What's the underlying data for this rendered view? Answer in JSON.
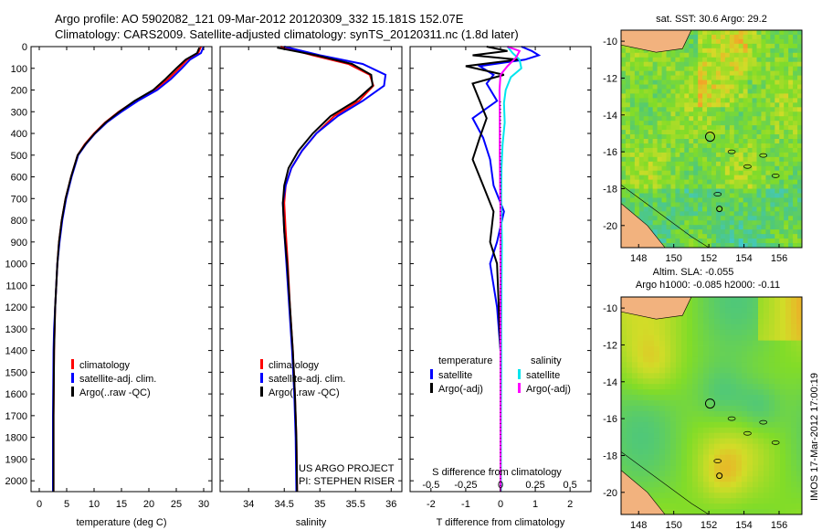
{
  "title": {
    "line1": "Argo profile: AO 5902082_121 09-Mar-2012 20120309_332 15.181S 152.07E",
    "line2": "Climatology: CARS2009. Satellite-adjusted climatology: synTS_20120311.nc (1.8d later)"
  },
  "credit": {
    "line1": "US ARGO PROJECT",
    "line2": "PI: STEPHEN RISER",
    "stamp": "IMOS 17-Mar-2012 17:00:19"
  },
  "colors": {
    "climatology": "#ff0000",
    "satellite": "#0000ff",
    "argo": "#000000",
    "satellite_s": "#00e5ee",
    "argo_s": "#ff00ff"
  },
  "chart_data": [
    {
      "type": "line",
      "name": "temperature-profile",
      "xlabel": "temperature (deg C)",
      "xlim": [
        -1.5,
        31.5
      ],
      "xticks": [
        "0",
        "5",
        "10",
        "15",
        "20",
        "25",
        "30"
      ],
      "xtick_values": [
        0,
        5,
        10,
        15,
        20,
        25,
        30
      ],
      "ylim": [
        0,
        2050
      ],
      "yticks": [
        "0",
        "100",
        "200",
        "300",
        "400",
        "500",
        "600",
        "700",
        "800",
        "900",
        "1000",
        "1100",
        "1200",
        "1300",
        "1400",
        "1500",
        "1600",
        "1700",
        "1800",
        "1900",
        "2000"
      ],
      "ytick_values": [
        0,
        100,
        200,
        300,
        400,
        500,
        600,
        700,
        800,
        900,
        1000,
        1100,
        1200,
        1300,
        1400,
        1500,
        1600,
        1700,
        1800,
        1900,
        2000
      ],
      "legend": [
        "climatology",
        "satellite-adj. clim.",
        "Argo(..raw -QC)"
      ],
      "series": [
        {
          "name": "climatology",
          "color": "#ff0000",
          "x": [
            29.5,
            29.0,
            27.0,
            25.5,
            23.5,
            21.0,
            17.5,
            14.5,
            12.0,
            10.0,
            8.3,
            7.0,
            5.8,
            4.8,
            4.1,
            3.6,
            3.3,
            3.1,
            2.9,
            2.8,
            2.7,
            2.6,
            2.6
          ],
          "y": [
            0,
            30,
            60,
            100,
            150,
            200,
            250,
            300,
            350,
            400,
            450,
            500,
            600,
            700,
            800,
            900,
            1000,
            1100,
            1200,
            1300,
            1400,
            1700,
            2050
          ]
        },
        {
          "name": "satellite-adj. clim.",
          "color": "#0000ff",
          "x": [
            30.0,
            29.5,
            27.5,
            26.0,
            24.0,
            21.5,
            18.0,
            15.0,
            12.3,
            10.2,
            8.5,
            7.1,
            5.9,
            4.9,
            4.2,
            3.7,
            3.3,
            3.1,
            2.9,
            2.7,
            2.6,
            2.5,
            2.5
          ],
          "y": [
            0,
            30,
            60,
            100,
            150,
            200,
            250,
            300,
            350,
            400,
            450,
            500,
            600,
            700,
            800,
            900,
            1000,
            1100,
            1200,
            1300,
            1400,
            1700,
            2050
          ]
        },
        {
          "name": "Argo(..raw -QC)",
          "color": "#000000",
          "x": [
            29.2,
            28.8,
            26.7,
            25.0,
            23.0,
            20.8,
            17.4,
            14.6,
            12.1,
            10.1,
            8.4,
            7.0,
            5.8,
            4.8,
            4.1,
            3.6,
            3.3,
            3.1,
            2.9,
            2.8,
            2.7,
            2.6,
            2.6
          ],
          "y": [
            5,
            30,
            60,
            100,
            150,
            200,
            250,
            300,
            350,
            400,
            450,
            500,
            600,
            700,
            800,
            900,
            1000,
            1100,
            1200,
            1300,
            1400,
            1700,
            2050
          ]
        }
      ]
    },
    {
      "type": "line",
      "name": "salinity-profile",
      "xlabel": "salinity",
      "xlim": [
        33.6,
        36.15
      ],
      "xticks": [
        "34",
        "34.5",
        "35",
        "35.5",
        "36"
      ],
      "xtick_values": [
        34,
        34.5,
        35,
        35.5,
        36
      ],
      "ylim": [
        0,
        2050
      ],
      "legend": [
        "climatology",
        "satellite-adj. clim.",
        "Argo(..raw -QC)"
      ],
      "series": [
        {
          "name": "climatology",
          "color": "#ff0000",
          "x": [
            34.45,
            34.9,
            35.4,
            35.7,
            35.75,
            35.55,
            35.2,
            34.95,
            34.75,
            34.6,
            34.52,
            34.5,
            34.52,
            34.55,
            34.58,
            34.62,
            34.65,
            34.67,
            34.68
          ],
          "y": [
            0,
            40,
            80,
            130,
            180,
            250,
            320,
            400,
            480,
            560,
            640,
            720,
            850,
            1000,
            1200,
            1400,
            1600,
            1800,
            2050
          ]
        },
        {
          "name": "satellite-adj. clim.",
          "color": "#0000ff",
          "x": [
            34.5,
            35.0,
            35.6,
            35.92,
            35.9,
            35.6,
            35.25,
            34.95,
            34.75,
            34.6,
            34.52,
            34.48,
            34.5,
            34.53,
            34.57,
            34.61,
            34.64,
            34.66,
            34.67
          ],
          "y": [
            0,
            40,
            80,
            130,
            180,
            250,
            320,
            400,
            480,
            560,
            640,
            720,
            850,
            1000,
            1200,
            1400,
            1600,
            1800,
            2050
          ]
        },
        {
          "name": "Argo(..raw -QC)",
          "color": "#000000",
          "x": [
            34.4,
            34.95,
            35.45,
            35.72,
            35.74,
            35.5,
            35.15,
            34.9,
            34.7,
            34.56,
            34.5,
            34.48,
            34.5,
            34.54,
            34.58,
            34.62,
            34.65,
            34.67,
            34.68
          ],
          "y": [
            5,
            40,
            80,
            130,
            180,
            250,
            320,
            400,
            480,
            560,
            640,
            720,
            850,
            1000,
            1200,
            1400,
            1600,
            1800,
            2050
          ]
        }
      ]
    },
    {
      "type": "line",
      "name": "difference-profile",
      "xlabel": "T difference from climatology",
      "xlabel_top": "S difference from climatology",
      "xlim": [
        -2.6,
        2.6
      ],
      "xticks": [
        "-2",
        "-1",
        "0",
        "1",
        "2"
      ],
      "xtick_values": [
        -2,
        -1,
        0,
        1,
        2
      ],
      "xticks_top": [
        "-0.5",
        "-0.25",
        "0",
        "0.25",
        "0.5"
      ],
      "xticks_top_values": [
        -0.5,
        -0.25,
        0,
        0.25,
        0.5
      ],
      "ylim": [
        0,
        2050
      ],
      "legend_header": [
        "temperature",
        "salinity"
      ],
      "legend": [
        "satellite",
        "Argo(-adj)",
        "satellite",
        "Argo(-adj)"
      ],
      "series": [
        {
          "name": "temperature satellite",
          "color": "#0000ff",
          "x": [
            0.6,
            0.9,
            1.1,
            0.7,
            -0.6,
            -0.2,
            -0.4,
            -0.1,
            -0.8,
            -0.5,
            -0.3,
            -0.2,
            0.1,
            -0.1,
            -0.3,
            -0.1,
            0.0,
            0.0,
            0.0,
            0.0
          ],
          "y": [
            0,
            20,
            40,
            60,
            90,
            130,
            170,
            250,
            330,
            420,
            520,
            640,
            760,
            900,
            1000,
            1200,
            1400,
            1600,
            1800,
            2050
          ]
        },
        {
          "name": "temperature Argo(-adj)",
          "color": "#000000",
          "x": [
            -0.4,
            0.2,
            -0.8,
            0.5,
            -1.0,
            0.1,
            -0.8,
            -0.6,
            -0.4,
            -0.6,
            -0.8,
            -0.5,
            -0.2,
            -0.3,
            -0.1,
            -0.05,
            0.0,
            0.0,
            0.0,
            0.0
          ],
          "y": [
            0,
            20,
            40,
            60,
            90,
            130,
            170,
            250,
            330,
            420,
            520,
            640,
            760,
            900,
            1000,
            1200,
            1400,
            1600,
            1800,
            2050
          ]
        },
        {
          "name": "salinity satellite",
          "color": "#00e5ee",
          "x": [
            0.2,
            0.35,
            0.55,
            0.6,
            0.3,
            0.15,
            0.1,
            0.12,
            0.06,
            0.03,
            0.02,
            0.03,
            0.04,
            0.03,
            0.02,
            0.02,
            0.01,
            0.01,
            0.01
          ],
          "y": [
            0,
            30,
            60,
            100,
            140,
            200,
            260,
            350,
            450,
            560,
            700,
            800,
            900,
            1100,
            1300,
            1500,
            1700,
            1900,
            2050
          ]
        },
        {
          "name": "salinity Argo(-adj)",
          "color": "#ff00ff",
          "x": [
            0.2,
            0.55,
            0.45,
            0.2,
            0.0,
            -0.03,
            -0.02,
            -0.02,
            0.0,
            0.0,
            0.0,
            0.0
          ],
          "y": [
            0,
            20,
            50,
            90,
            130,
            200,
            300,
            500,
            800,
            1200,
            1600,
            2050
          ]
        }
      ]
    },
    {
      "type": "heatmap",
      "name": "sst-map",
      "title": "sat. SST: 30.6 Argo: 29.2",
      "xticks": [
        "148",
        "150",
        "152",
        "154",
        "156"
      ],
      "xtick_values": [
        148,
        150,
        152,
        154,
        156
      ],
      "yticks": [
        "-10",
        "-12",
        "-14",
        "-16",
        "-18",
        "-20"
      ],
      "ytick_values": [
        -10,
        -12,
        -14,
        -16,
        -18,
        -20
      ],
      "xlim": [
        147,
        157.3
      ],
      "ylim": [
        -21.2,
        -9.4
      ],
      "marker": {
        "lon": 152.07,
        "lat": -15.181
      }
    },
    {
      "type": "heatmap",
      "name": "sla-map",
      "title": "Altim. SLA: -0.055",
      "subtitle": "Argo h1000: -0.085 h2000: -0.11",
      "xticks": [
        "148",
        "150",
        "152",
        "154",
        "156"
      ],
      "xtick_values": [
        148,
        150,
        152,
        154,
        156
      ],
      "yticks": [
        "-10",
        "-12",
        "-14",
        "-16",
        "-18",
        "-20"
      ],
      "ytick_values": [
        -10,
        -12,
        -14,
        -16,
        -18,
        -20
      ],
      "xlim": [
        147,
        157.3
      ],
      "ylim": [
        -21.2,
        -9.4
      ],
      "marker": {
        "lon": 152.07,
        "lat": -15.181
      }
    }
  ]
}
